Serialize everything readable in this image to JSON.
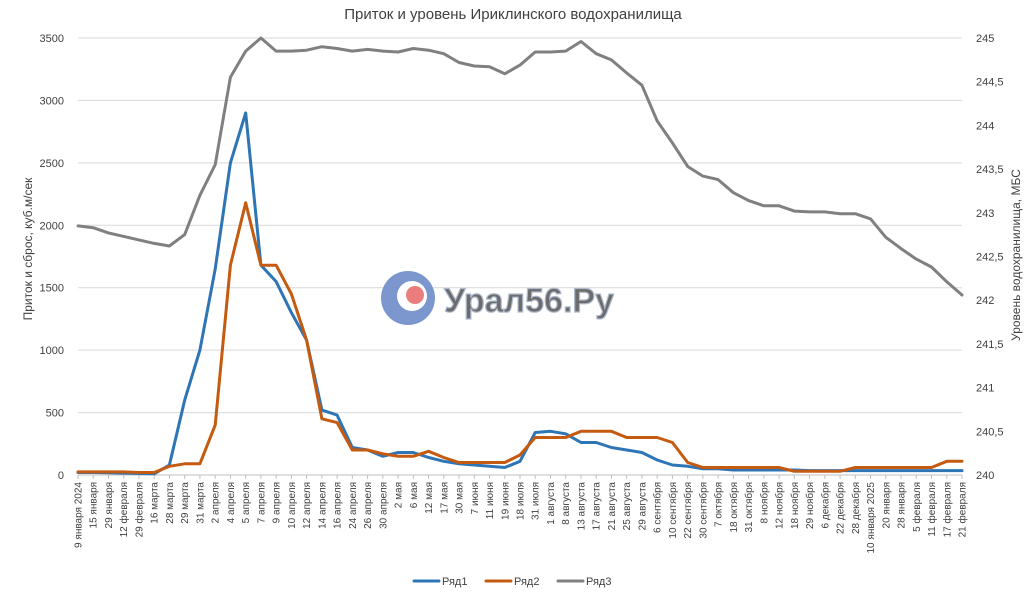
{
  "chart_data": {
    "type": "line",
    "title": "Приток и уровень Ириклинского водохранилища",
    "ylabel": "Приток и сброс, куб.м/сек",
    "y2label": "Уровень водохранилища, МБС",
    "ylim": [
      0,
      3500
    ],
    "y2lim": [
      240,
      245
    ],
    "yticks": [
      "0",
      "500",
      "1000",
      "1500",
      "2000",
      "2500",
      "3000",
      "3500"
    ],
    "y2ticks": [
      "240",
      "240,5",
      "241",
      "241,5",
      "242",
      "242,5",
      "243",
      "243,5",
      "244",
      "244,5",
      "245"
    ],
    "grid": true,
    "legend_position": "bottom",
    "categories": [
      "9 января 2024",
      "15 января",
      "29 января",
      "12 февраля",
      "29 февраля",
      "16 марта",
      "28 марта",
      "29 марта",
      "31 марта",
      "2 апреля",
      "4 апреля",
      "5 апреля",
      "7 апреля",
      "9 апреля",
      "10 апреля",
      "12 апреля",
      "14 апреля",
      "16 апреля",
      "24 апреля",
      "26 апреля",
      "30 апреля",
      "2 мая",
      "6 мая",
      "12 мая",
      "17 мая",
      "30 мая",
      "7 июня",
      "11 июня",
      "19 июня",
      "18 июля",
      "31 июля",
      "1 августа",
      "8 августа",
      "13 августа",
      "17 августа",
      "21 августа",
      "25 августа",
      "29 августа",
      "6 сентября",
      "10 сентября",
      "22 сентября",
      "30 сентября",
      "7 октября",
      "18 октября",
      "31 октября",
      "8 ноября",
      "12 ноября",
      "18 ноября",
      "29 ноября",
      "6 декабря",
      "22 декабря",
      "28 декабря",
      "10 января 2025",
      "20 января",
      "28 января",
      "5 февраля",
      "11 февраля",
      "17 февраля",
      "21 февраля"
    ],
    "series": [
      {
        "name": "Ряд1",
        "axis": "left",
        "color": "#2e75b6",
        "values": [
          20,
          20,
          18,
          15,
          12,
          10,
          80,
          600,
          1000,
          1650,
          2500,
          2900,
          1680,
          1550,
          1300,
          1080,
          520,
          480,
          220,
          200,
          150,
          180,
          180,
          140,
          110,
          90,
          80,
          70,
          60,
          110,
          340,
          350,
          330,
          260,
          260,
          220,
          200,
          180,
          120,
          80,
          70,
          50,
          50,
          40,
          40,
          40,
          40,
          40,
          35,
          35,
          35,
          35,
          35,
          35,
          35,
          35,
          35,
          35,
          35
        ]
      },
      {
        "name": "Ряд2",
        "axis": "left",
        "color": "#c55a11",
        "values": [
          25,
          25,
          25,
          25,
          20,
          20,
          70,
          90,
          90,
          400,
          1680,
          2180,
          1680,
          1680,
          1450,
          1080,
          450,
          420,
          200,
          200,
          170,
          150,
          150,
          190,
          140,
          100,
          100,
          100,
          100,
          160,
          300,
          300,
          300,
          350,
          350,
          350,
          300,
          300,
          300,
          260,
          100,
          60,
          60,
          60,
          60,
          60,
          60,
          30,
          30,
          30,
          30,
          60,
          60,
          60,
          60,
          60,
          60,
          110,
          110
        ]
      },
      {
        "name": "Ряд3",
        "axis": "right",
        "color": "#808080",
        "values": [
          242.85,
          242.83,
          242.77,
          242.73,
          242.69,
          242.65,
          242.62,
          242.75,
          243.2,
          243.55,
          244.55,
          244.85,
          245.0,
          244.85,
          244.85,
          244.86,
          244.9,
          244.88,
          244.85,
          244.87,
          244.85,
          244.84,
          244.88,
          244.86,
          244.82,
          244.72,
          244.68,
          244.67,
          244.59,
          244.69,
          244.84,
          244.84,
          244.85,
          244.96,
          244.82,
          244.75,
          244.6,
          244.46,
          244.05,
          243.8,
          243.53,
          243.42,
          243.38,
          243.23,
          243.14,
          243.08,
          243.08,
          243.02,
          243.01,
          243.01,
          242.99,
          242.99,
          242.93,
          242.72,
          242.59,
          242.47,
          242.38,
          242.21,
          242.06
        ]
      }
    ]
  },
  "watermark": {
    "text": "Урал56.Ру"
  }
}
